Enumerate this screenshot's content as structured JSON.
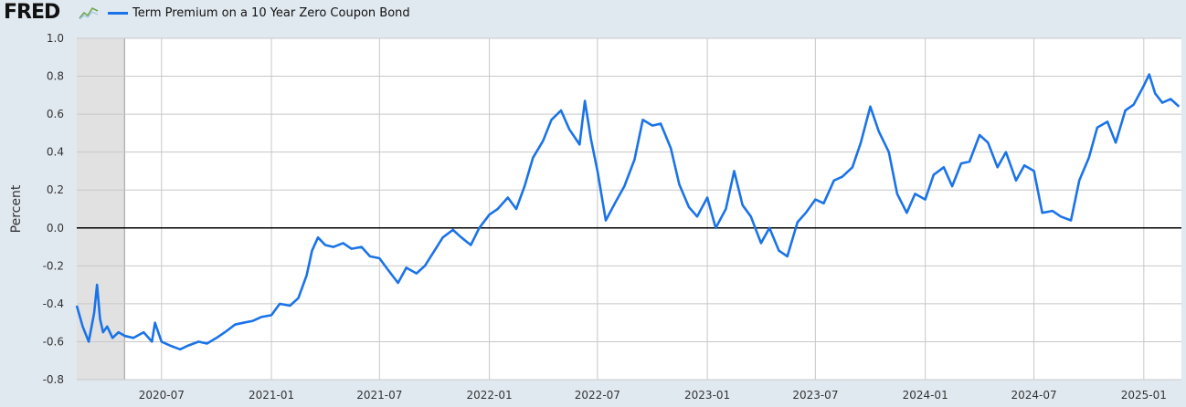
{
  "brand": {
    "logo_text": "FRED",
    "logo_icon": "line-chart-icon"
  },
  "colors": {
    "series": "#1a73e8",
    "background": "#e1e9f0",
    "plot_bg": "#ffffff",
    "grid": "#c8c8c8",
    "recession": "#e1e1e1"
  },
  "chart_data": {
    "type": "line",
    "title": "",
    "ylabel": "Percent",
    "xlabel": "",
    "ylim": [
      -0.8,
      1.0
    ],
    "xlim": [
      "2020-02-10",
      "2025-03-05"
    ],
    "grid": true,
    "legend": "top-left",
    "y_ticks": [
      "1.0",
      "0.8",
      "0.6",
      "0.4",
      "0.2",
      "0.0",
      "-0.2",
      "-0.4",
      "-0.6",
      "-0.8"
    ],
    "x_ticks": [
      "2020-07",
      "2021-01",
      "2021-07",
      "2022-01",
      "2022-07",
      "2023-01",
      "2023-07",
      "2024-01",
      "2024-07",
      "2025-01"
    ],
    "recession_shading": [
      [
        "2020-02-10",
        "2020-04-30"
      ]
    ],
    "zero_line": 0.0,
    "series": [
      {
        "name": "Term Premium on a 10 Year Zero Coupon Bond",
        "x": [
          "2020-02-10",
          "2020-02-20",
          "2020-03-01",
          "2020-03-10",
          "2020-03-15",
          "2020-03-20",
          "2020-03-25",
          "2020-04-01",
          "2020-04-10",
          "2020-04-20",
          "2020-05-01",
          "2020-05-15",
          "2020-06-01",
          "2020-06-15",
          "2020-06-20",
          "2020-07-01",
          "2020-07-15",
          "2020-08-01",
          "2020-08-15",
          "2020-09-01",
          "2020-09-15",
          "2020-10-01",
          "2020-10-15",
          "2020-11-01",
          "2020-11-15",
          "2020-12-01",
          "2020-12-15",
          "2021-01-01",
          "2021-01-15",
          "2021-02-01",
          "2021-02-15",
          "2021-03-01",
          "2021-03-10",
          "2021-03-20",
          "2021-04-01",
          "2021-04-15",
          "2021-05-01",
          "2021-05-15",
          "2021-06-01",
          "2021-06-15",
          "2021-07-01",
          "2021-07-15",
          "2021-08-01",
          "2021-08-15",
          "2021-09-01",
          "2021-09-15",
          "2021-10-01",
          "2021-10-15",
          "2021-11-01",
          "2021-11-15",
          "2021-12-01",
          "2021-12-15",
          "2022-01-01",
          "2022-01-15",
          "2022-02-01",
          "2022-02-15",
          "2022-03-01",
          "2022-03-15",
          "2022-04-01",
          "2022-04-15",
          "2022-05-01",
          "2022-05-15",
          "2022-06-01",
          "2022-06-10",
          "2022-06-20",
          "2022-07-01",
          "2022-07-15",
          "2022-08-01",
          "2022-08-15",
          "2022-09-01",
          "2022-09-15",
          "2022-10-01",
          "2022-10-15",
          "2022-11-01",
          "2022-11-15",
          "2022-12-01",
          "2022-12-15",
          "2023-01-01",
          "2023-01-15",
          "2023-02-01",
          "2023-02-15",
          "2023-03-01",
          "2023-03-15",
          "2023-04-01",
          "2023-04-15",
          "2023-05-01",
          "2023-05-15",
          "2023-06-01",
          "2023-06-15",
          "2023-07-01",
          "2023-07-15",
          "2023-08-01",
          "2023-08-15",
          "2023-09-01",
          "2023-09-15",
          "2023-10-01",
          "2023-10-15",
          "2023-11-01",
          "2023-11-15",
          "2023-12-01",
          "2023-12-15",
          "2024-01-01",
          "2024-01-15",
          "2024-02-01",
          "2024-02-15",
          "2024-03-01",
          "2024-03-15",
          "2024-04-01",
          "2024-04-15",
          "2024-05-01",
          "2024-05-15",
          "2024-06-01",
          "2024-06-15",
          "2024-07-01",
          "2024-07-15",
          "2024-08-01",
          "2024-08-15",
          "2024-09-01",
          "2024-09-15",
          "2024-10-01",
          "2024-10-15",
          "2024-11-01",
          "2024-11-15",
          "2024-12-01",
          "2024-12-15",
          "2025-01-01",
          "2025-01-10",
          "2025-01-20",
          "2025-02-01",
          "2025-02-15",
          "2025-03-01"
        ],
        "values": [
          -0.41,
          -0.52,
          -0.6,
          -0.45,
          -0.3,
          -0.48,
          -0.55,
          -0.52,
          -0.58,
          -0.55,
          -0.57,
          -0.58,
          -0.55,
          -0.6,
          -0.5,
          -0.6,
          -0.62,
          -0.64,
          -0.62,
          -0.6,
          -0.61,
          -0.58,
          -0.55,
          -0.51,
          -0.5,
          -0.49,
          -0.47,
          -0.46,
          -0.4,
          -0.41,
          -0.37,
          -0.25,
          -0.12,
          -0.05,
          -0.09,
          -0.1,
          -0.08,
          -0.11,
          -0.1,
          -0.15,
          -0.16,
          -0.22,
          -0.29,
          -0.21,
          -0.24,
          -0.2,
          -0.12,
          -0.05,
          -0.01,
          -0.05,
          -0.09,
          0.0,
          0.07,
          0.1,
          0.16,
          0.1,
          0.22,
          0.37,
          0.46,
          0.57,
          0.62,
          0.52,
          0.44,
          0.67,
          0.47,
          0.3,
          0.04,
          0.14,
          0.22,
          0.36,
          0.57,
          0.54,
          0.55,
          0.42,
          0.23,
          0.11,
          0.06,
          0.16,
          0.0,
          0.1,
          0.3,
          0.12,
          0.06,
          -0.08,
          0.0,
          -0.12,
          -0.15,
          0.03,
          0.08,
          0.15,
          0.13,
          0.25,
          0.27,
          0.32,
          0.45,
          0.64,
          0.51,
          0.4,
          0.18,
          0.08,
          0.18,
          0.15,
          0.28,
          0.32,
          0.22,
          0.34,
          0.35,
          0.49,
          0.45,
          0.32,
          0.4,
          0.25,
          0.33,
          0.3,
          0.08,
          0.09,
          0.06,
          0.04,
          0.25,
          0.37,
          0.53,
          0.56,
          0.45,
          0.62,
          0.65,
          0.75,
          0.81,
          0.71,
          0.66,
          0.68,
          0.64
        ]
      }
    ]
  }
}
